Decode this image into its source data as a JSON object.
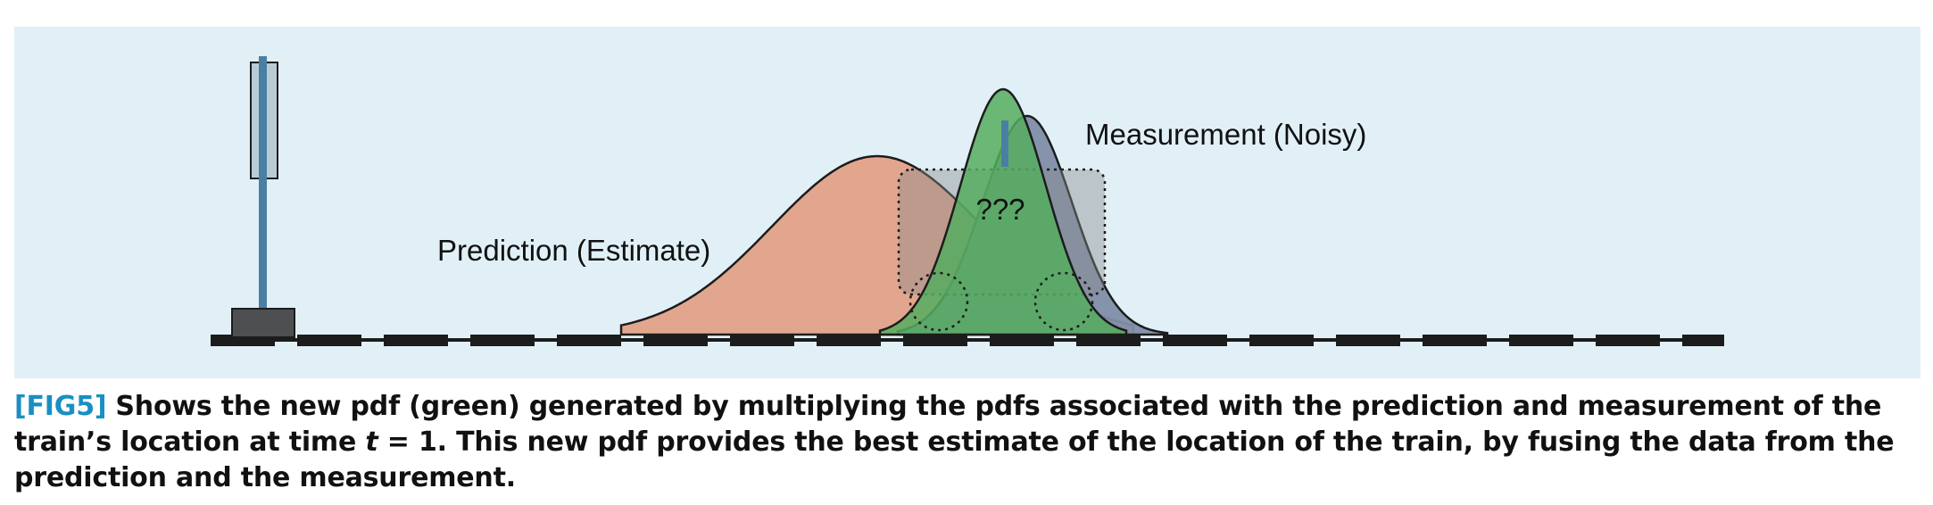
{
  "figure": {
    "labels": {
      "prediction": "Prediction (Estimate)",
      "measurement": "Measurement (Noisy)",
      "unknown": "???"
    },
    "colors": {
      "background": "#e1f0f7",
      "prediction_pdf": "#e2a188",
      "measurement_pdf": "#7f8ea8",
      "fused_pdf": "#55ad5f",
      "signal_pole": "#4a7fa3",
      "track": "#1c1c1c"
    }
  },
  "caption": {
    "tag": "[FIG5]",
    "part1": "Shows the new pdf (green) generated by multiplying the pdfs associated with the prediction and measurement of the train’s location at time ",
    "var": "t",
    "part2": " = 1. This new pdf provides the best estimate of the location of the train, by fusing the data from the prediction and the measurement."
  }
}
